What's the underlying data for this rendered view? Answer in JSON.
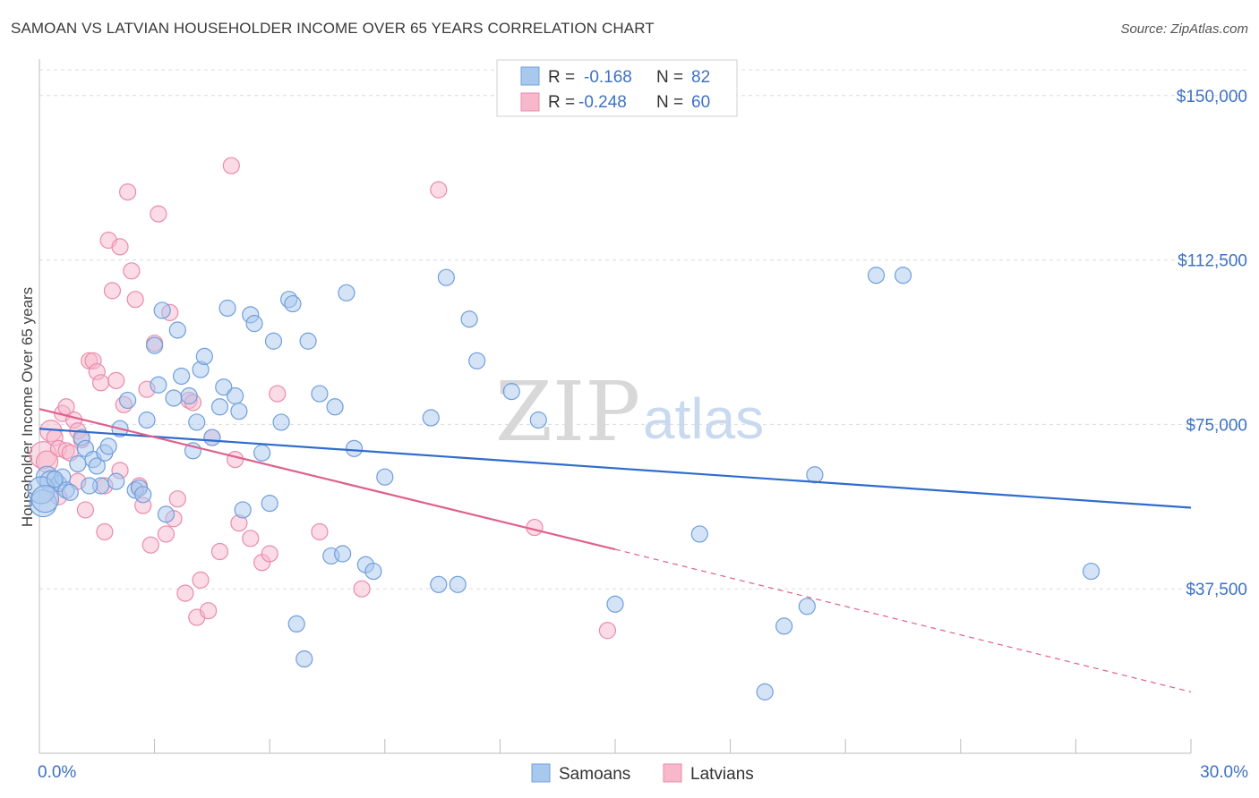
{
  "title": "SAMOAN VS LATVIAN HOUSEHOLDER INCOME OVER 65 YEARS CORRELATION CHART",
  "source": "Source: ZipAtlas.com",
  "watermark": {
    "zip": "ZIP",
    "atlas": "atlas"
  },
  "colors": {
    "samoan_fill": "#a9c8ee",
    "samoan_stroke": "#6f9fdc",
    "samoan_line": "#2f6ccc",
    "latvian_fill": "#f7b8cb",
    "latvian_stroke": "#ea8bab",
    "latvian_line": "#e0608c",
    "grid": "#dcdcdc",
    "axis_text": "#3d72c4"
  },
  "legend": {
    "samoan": {
      "r_label": "R =",
      "r_value": "-0.168",
      "n_label": "N =",
      "n_value": "82"
    },
    "latvian": {
      "r_label": "R =",
      "r_value": "-0.248",
      "n_label": "N =",
      "n_value": "60"
    }
  },
  "chart_data": {
    "type": "scatter",
    "xlabel": "",
    "ylabel": "Householder Income Over 65 years",
    "xlim": [
      0,
      30
    ],
    "ylim": [
      0,
      157500
    ],
    "x_tick_labels": {
      "min": "0.0%",
      "max": "30.0%"
    },
    "y_ticks": [
      {
        "value": 37500,
        "label": "$37,500"
      },
      {
        "value": 75000,
        "label": "$75,000"
      },
      {
        "value": 112500,
        "label": "$112,500"
      },
      {
        "value": 150000,
        "label": "$150,000"
      }
    ],
    "grid": true,
    "legend_position": "top-center",
    "series": [
      {
        "name": "Samoans",
        "trend": {
          "x0": 0,
          "y0": 74000,
          "x1": 30,
          "y1": 56000,
          "dashed_from": null
        },
        "points": [
          [
            0.1,
            57000
          ],
          [
            0.2,
            63000
          ],
          [
            0.3,
            62000
          ],
          [
            0.5,
            61500
          ],
          [
            0.6,
            63000
          ],
          [
            0.7,
            60000
          ],
          [
            1.0,
            66000
          ],
          [
            1.1,
            72000
          ],
          [
            1.2,
            69500
          ],
          [
            1.4,
            67000
          ],
          [
            1.5,
            65500
          ],
          [
            1.6,
            61000
          ],
          [
            1.7,
            68500
          ],
          [
            1.8,
            70000
          ],
          [
            2.1,
            74000
          ],
          [
            2.3,
            80500
          ],
          [
            2.5,
            60000
          ],
          [
            2.6,
            60500
          ],
          [
            2.8,
            76000
          ],
          [
            3.0,
            93000
          ],
          [
            3.1,
            84000
          ],
          [
            3.2,
            101000
          ],
          [
            3.3,
            54500
          ],
          [
            3.5,
            81000
          ],
          [
            3.6,
            96500
          ],
          [
            3.7,
            86000
          ],
          [
            3.9,
            81500
          ],
          [
            4.0,
            69000
          ],
          [
            4.1,
            75500
          ],
          [
            4.2,
            87500
          ],
          [
            4.3,
            90500
          ],
          [
            4.5,
            72000
          ],
          [
            4.7,
            79000
          ],
          [
            4.8,
            83500
          ],
          [
            4.9,
            101500
          ],
          [
            5.1,
            81500
          ],
          [
            5.2,
            78000
          ],
          [
            5.3,
            55500
          ],
          [
            5.5,
            100000
          ],
          [
            5.6,
            98000
          ],
          [
            5.8,
            68500
          ],
          [
            6.0,
            57000
          ],
          [
            6.1,
            94000
          ],
          [
            6.3,
            75500
          ],
          [
            6.5,
            103500
          ],
          [
            6.6,
            102500
          ],
          [
            6.7,
            29500
          ],
          [
            6.9,
            21500
          ],
          [
            7.0,
            94000
          ],
          [
            7.3,
            82000
          ],
          [
            7.6,
            45000
          ],
          [
            7.7,
            79000
          ],
          [
            7.9,
            45500
          ],
          [
            8.0,
            105000
          ],
          [
            8.2,
            69500
          ],
          [
            8.5,
            43000
          ],
          [
            8.7,
            41500
          ],
          [
            9.0,
            63000
          ],
          [
            10.2,
            76500
          ],
          [
            10.4,
            38500
          ],
          [
            10.6,
            108500
          ],
          [
            10.9,
            38500
          ],
          [
            11.2,
            99000
          ],
          [
            11.4,
            89500
          ],
          [
            12.3,
            82500
          ],
          [
            13.0,
            76000
          ],
          [
            15.0,
            34000
          ],
          [
            17.2,
            50000
          ],
          [
            18.9,
            14000
          ],
          [
            19.4,
            29000
          ],
          [
            20.0,
            33500
          ],
          [
            20.2,
            63500
          ],
          [
            21.8,
            109000
          ],
          [
            22.5,
            109000
          ],
          [
            27.4,
            41500
          ],
          [
            0.05,
            60000
          ],
          [
            0.15,
            58000
          ],
          [
            0.4,
            62500
          ],
          [
            0.8,
            59500
          ],
          [
            1.3,
            61000
          ],
          [
            2.0,
            62000
          ],
          [
            2.7,
            59000
          ]
        ],
        "point_sizes_note": "larger circles near x=0"
      },
      {
        "name": "Latvians",
        "trend": {
          "x0": 0,
          "y0": 78500,
          "x1": 15,
          "y1": 46500,
          "dashed_to": 30,
          "dashed_y": 14000
        },
        "points": [
          [
            0.1,
            68000
          ],
          [
            0.3,
            73500
          ],
          [
            0.4,
            72000
          ],
          [
            0.5,
            69500
          ],
          [
            0.6,
            77500
          ],
          [
            0.7,
            69000
          ],
          [
            0.8,
            68500
          ],
          [
            0.7,
            79000
          ],
          [
            0.9,
            76000
          ],
          [
            1.0,
            73500
          ],
          [
            1.1,
            71500
          ],
          [
            1.2,
            55500
          ],
          [
            1.3,
            89500
          ],
          [
            1.4,
            89500
          ],
          [
            1.5,
            87000
          ],
          [
            1.6,
            84500
          ],
          [
            1.7,
            61000
          ],
          [
            1.7,
            50500
          ],
          [
            1.8,
            117000
          ],
          [
            1.9,
            105500
          ],
          [
            2.0,
            85000
          ],
          [
            2.1,
            115500
          ],
          [
            2.1,
            64500
          ],
          [
            2.2,
            79500
          ],
          [
            2.3,
            128000
          ],
          [
            2.4,
            110000
          ],
          [
            2.5,
            103500
          ],
          [
            2.6,
            61000
          ],
          [
            2.7,
            56500
          ],
          [
            2.8,
            83000
          ],
          [
            2.9,
            47500
          ],
          [
            3.0,
            93500
          ],
          [
            3.1,
            123000
          ],
          [
            3.3,
            50000
          ],
          [
            3.4,
            100500
          ],
          [
            3.5,
            53500
          ],
          [
            3.6,
            58000
          ],
          [
            3.8,
            36500
          ],
          [
            3.9,
            80500
          ],
          [
            4.0,
            80000
          ],
          [
            4.1,
            31000
          ],
          [
            4.2,
            39500
          ],
          [
            4.4,
            32500
          ],
          [
            4.5,
            72000
          ],
          [
            4.7,
            46000
          ],
          [
            5.0,
            134000
          ],
          [
            5.1,
            67000
          ],
          [
            5.2,
            52500
          ],
          [
            5.5,
            49000
          ],
          [
            5.8,
            43500
          ],
          [
            6.0,
            45500
          ],
          [
            6.2,
            82000
          ],
          [
            7.3,
            50500
          ],
          [
            8.4,
            37500
          ],
          [
            10.4,
            128500
          ],
          [
            12.9,
            51500
          ],
          [
            14.8,
            28000
          ],
          [
            0.2,
            66500
          ],
          [
            0.5,
            58500
          ],
          [
            1.0,
            62000
          ]
        ]
      }
    ]
  }
}
